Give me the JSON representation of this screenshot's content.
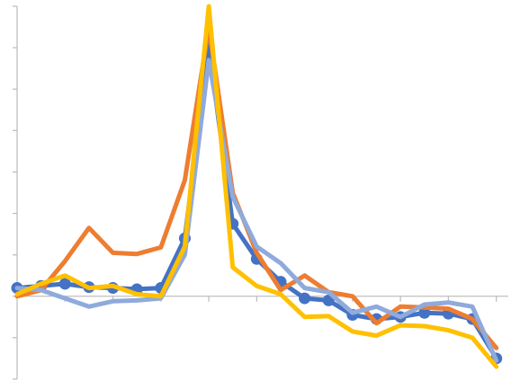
{
  "chart_data": {
    "type": "line",
    "title": "",
    "xlabel": "",
    "ylabel": "",
    "grid": false,
    "legend": "none",
    "x": [
      0,
      1,
      2,
      3,
      4,
      5,
      6,
      7,
      8,
      9,
      10,
      11,
      12,
      13,
      14,
      15,
      16,
      17,
      18,
      19,
      20
    ],
    "xlim": [
      0,
      20.5
    ],
    "ylim": [
      -2,
      7
    ],
    "x_tick_marks": [
      2,
      4,
      6,
      8,
      10,
      12,
      14,
      16,
      18,
      20
    ],
    "y_tick_marks": [
      -2,
      -1,
      0,
      1,
      2,
      3,
      4,
      5,
      6,
      7
    ],
    "series": [
      {
        "color": "#4472C4",
        "markers": true,
        "values": [
          0.2,
          0.25,
          0.3,
          0.22,
          0.2,
          0.17,
          0.2,
          1.4,
          6.0,
          1.75,
          0.9,
          0.35,
          -0.05,
          -0.1,
          -0.45,
          -0.55,
          -0.5,
          -0.4,
          -0.42,
          -0.55,
          -1.5
        ]
      },
      {
        "color": "#ED7D31",
        "markers": false,
        "values": [
          0.0,
          0.15,
          0.85,
          1.65,
          1.05,
          1.02,
          1.18,
          2.8,
          6.5,
          2.5,
          1.05,
          0.15,
          0.5,
          0.1,
          0.0,
          -0.65,
          -0.25,
          -0.27,
          -0.3,
          -0.55,
          -1.25
        ]
      },
      {
        "color": "#8FAADC",
        "markers": false,
        "values": [
          0.2,
          0.15,
          -0.05,
          -0.25,
          -0.12,
          -0.1,
          -0.05,
          1.0,
          5.7,
          2.4,
          1.2,
          0.8,
          0.2,
          0.1,
          -0.4,
          -0.25,
          -0.5,
          -0.2,
          -0.15,
          -0.25,
          -1.55
        ]
      },
      {
        "color": "#FFC000",
        "markers": false,
        "values": [
          0.05,
          0.3,
          0.5,
          0.2,
          0.25,
          0.05,
          0.0,
          1.2,
          7.0,
          0.7,
          0.25,
          0.05,
          -0.5,
          -0.48,
          -0.85,
          -0.95,
          -0.7,
          -0.72,
          -0.82,
          -1.0,
          -1.7
        ]
      }
    ]
  }
}
